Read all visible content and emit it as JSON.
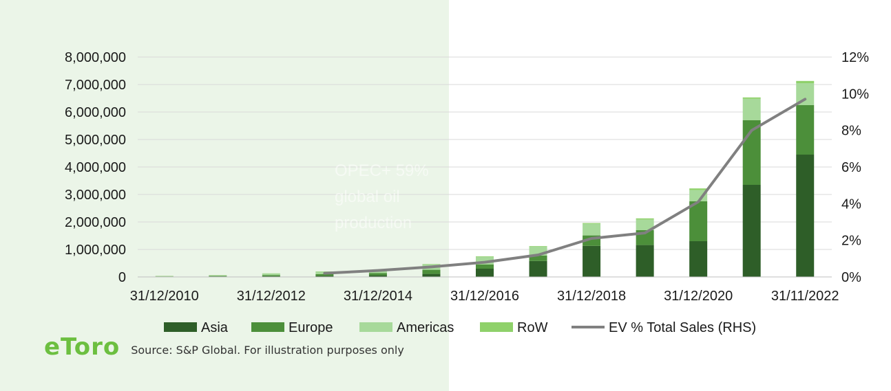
{
  "chart_data": {
    "type": "bar",
    "stacked": true,
    "categories": [
      "31/12/2010",
      "31/12/2011",
      "31/12/2012",
      "31/12/2013",
      "31/12/2014",
      "31/12/2015",
      "31/12/2016",
      "31/12/2017",
      "31/12/2018",
      "31/12/2019",
      "31/12/2020",
      "31/12/2021",
      "31/11/2022"
    ],
    "x_tick_labels": [
      "31/12/2010",
      "31/12/2012",
      "31/12/2014",
      "31/12/2016",
      "31/12/2018",
      "31/12/2020",
      "31/11/2022"
    ],
    "series": [
      {
        "name": "Asia",
        "color": "#2e5e28",
        "values": [
          10000,
          20000,
          30000,
          40000,
          60000,
          110000,
          300000,
          580000,
          1130000,
          1160000,
          1300000,
          3350000,
          4450000
        ]
      },
      {
        "name": "Europe",
        "color": "#4c8f3a",
        "values": [
          10000,
          20000,
          40000,
          60000,
          80000,
          150000,
          150000,
          200000,
          380000,
          540000,
          1450000,
          2350000,
          1800000
        ]
      },
      {
        "name": "Americas",
        "color": "#a7d99a",
        "values": [
          15000,
          20000,
          50000,
          90000,
          110000,
          200000,
          280000,
          320000,
          420000,
          390000,
          410000,
          780000,
          800000
        ]
      },
      {
        "name": "RoW",
        "color": "#8fd16a",
        "values": [
          5000,
          5000,
          10000,
          10000,
          10000,
          10000,
          20000,
          20000,
          30000,
          40000,
          60000,
          50000,
          80000
        ]
      }
    ],
    "line_series": {
      "name": "EV % Total Sales (RHS)",
      "color": "#808080",
      "x_start_index": 3,
      "values": [
        0.2,
        0.35,
        0.55,
        0.8,
        1.2,
        2.1,
        2.4,
        4.1,
        8.0,
        9.7
      ]
    },
    "y_left": {
      "min": 0,
      "max": 8000000,
      "ticks": [
        "0",
        "1,000,000",
        "2,000,000",
        "3,000,000",
        "4,000,000",
        "5,000,000",
        "6,000,000",
        "7,000,000",
        "8,000,000"
      ]
    },
    "y_right": {
      "min": 0,
      "max": 12,
      "ticks": [
        "0%",
        "2%",
        "4%",
        "6%",
        "8%",
        "10%",
        "12%"
      ]
    },
    "grid": true,
    "legend_position": "bottom"
  },
  "overlay": {
    "line1": "OPEC+ 59%",
    "line2": "global oil",
    "line3": "production"
  },
  "footer": {
    "logo": "eToro",
    "source": "Source: S&P Global. For illustration purposes only"
  }
}
